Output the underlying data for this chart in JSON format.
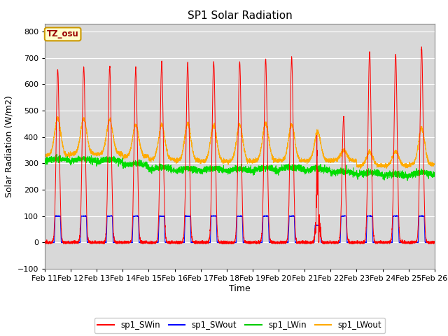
{
  "title": "SP1 Solar Radiation",
  "xlabel": "Time",
  "ylabel": "Solar Radiation (W/m2)",
  "ylim": [
    -100,
    830
  ],
  "yticks": [
    -100,
    0,
    100,
    200,
    300,
    400,
    500,
    600,
    700,
    800
  ],
  "x_labels": [
    "Feb 11",
    "Feb 12",
    "Feb 13",
    "Feb 14",
    "Feb 15",
    "Feb 16",
    "Feb 17",
    "Feb 18",
    "Feb 19",
    "Feb 20",
    "Feb 21",
    "Feb 22",
    "Feb 23",
    "Feb 24",
    "Feb 25",
    "Feb 26"
  ],
  "legend_entries": [
    "sp1_SWin",
    "sp1_SWout",
    "sp1_LWin",
    "sp1_LWout"
  ],
  "legend_colors": [
    "#ff0000",
    "#0000ff",
    "#00cc00",
    "#ffaa00"
  ],
  "line_colors": {
    "SWin": "#ff0000",
    "SWout": "#0000ff",
    "LWin": "#00dd00",
    "LWout": "#ffaa00"
  },
  "tz_label": "TZ_osu",
  "plot_bg_color": "#d8d8d8",
  "fig_bg_color": "#ffffff",
  "grid_color": "#ffffff",
  "num_days": 15,
  "points_per_day": 288,
  "sw_peaks": [
    655,
    665,
    665,
    660,
    685,
    680,
    685,
    685,
    695,
    700,
    460,
    475,
    725,
    715,
    740
  ],
  "lw_bases": [
    330,
    335,
    335,
    325,
    315,
    310,
    308,
    307,
    310,
    310,
    310,
    310,
    290,
    290,
    295
  ],
  "lw_peaks_amp": [
    140,
    135,
    130,
    120,
    130,
    140,
    135,
    140,
    140,
    135,
    110,
    40,
    55,
    55,
    140
  ],
  "lwin_bases": [
    307,
    307,
    305,
    290,
    275,
    270,
    270,
    270,
    272,
    275,
    270,
    260,
    255,
    250,
    255
  ]
}
